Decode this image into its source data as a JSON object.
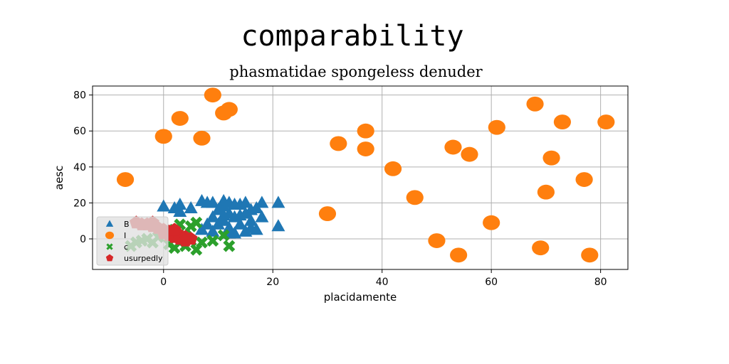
{
  "chart_data": {
    "type": "scatter",
    "title": "comparability",
    "subtitle": "phasmatidae spongeless denuder",
    "xlabel": "placidamente",
    "ylabel": "aesc",
    "xlim": [
      -13,
      85
    ],
    "ylim": [
      -17,
      85
    ],
    "xticks": [
      0,
      20,
      40,
      60,
      80
    ],
    "yticks": [
      0,
      20,
      40,
      60,
      80
    ],
    "grid": true,
    "legend_position": "lower-left",
    "series": [
      {
        "name": "B",
        "marker": "triangle",
        "color": "#1f77b4",
        "points": [
          [
            0,
            18
          ],
          [
            2,
            17
          ],
          [
            3,
            15
          ],
          [
            3,
            19
          ],
          [
            5,
            17
          ],
          [
            7,
            21
          ],
          [
            8,
            20
          ],
          [
            9,
            20
          ],
          [
            10,
            16
          ],
          [
            11,
            18
          ],
          [
            11,
            21
          ],
          [
            12,
            20
          ],
          [
            13,
            19
          ],
          [
            14,
            19
          ],
          [
            15,
            20
          ],
          [
            16,
            16
          ],
          [
            17,
            17
          ],
          [
            18,
            20
          ],
          [
            21,
            20
          ],
          [
            7,
            5
          ],
          [
            8,
            8
          ],
          [
            9,
            4
          ],
          [
            10,
            8
          ],
          [
            11,
            10
          ],
          [
            12,
            6
          ],
          [
            12,
            14
          ],
          [
            13,
            12
          ],
          [
            13,
            3
          ],
          [
            14,
            8
          ],
          [
            15,
            14
          ],
          [
            15,
            4
          ],
          [
            16,
            10
          ],
          [
            16,
            6
          ],
          [
            17,
            5
          ],
          [
            18,
            12
          ],
          [
            21,
            7
          ],
          [
            11,
            13
          ],
          [
            9,
            12
          ],
          [
            14,
            13
          ],
          [
            12,
            3
          ]
        ]
      },
      {
        "name": "I",
        "marker": "circle",
        "color": "#ff7f0e",
        "points": [
          [
            -7,
            33
          ],
          [
            0,
            57
          ],
          [
            3,
            67
          ],
          [
            7,
            56
          ],
          [
            9,
            80
          ],
          [
            11,
            70
          ],
          [
            12,
            72
          ],
          [
            30,
            14
          ],
          [
            32,
            53
          ],
          [
            37,
            60
          ],
          [
            37,
            50
          ],
          [
            42,
            39
          ],
          [
            46,
            23
          ],
          [
            50,
            -1
          ],
          [
            53,
            51
          ],
          [
            54,
            -9
          ],
          [
            56,
            47
          ],
          [
            60,
            9
          ],
          [
            61,
            62
          ],
          [
            68,
            75
          ],
          [
            69,
            -5
          ],
          [
            70,
            26
          ],
          [
            71,
            45
          ],
          [
            73,
            65
          ],
          [
            77,
            33
          ],
          [
            78,
            -9
          ],
          [
            81,
            65
          ]
        ]
      },
      {
        "name": "c",
        "marker": "x",
        "color": "#2ca02c",
        "points": [
          [
            -6,
            -4
          ],
          [
            -5,
            -2
          ],
          [
            -4,
            -1
          ],
          [
            -3,
            0
          ],
          [
            -2,
            -2
          ],
          [
            -1,
            1
          ],
          [
            0,
            3
          ],
          [
            1,
            -3
          ],
          [
            2,
            5
          ],
          [
            2,
            -5
          ],
          [
            3,
            8
          ],
          [
            3,
            -2
          ],
          [
            4,
            2
          ],
          [
            4,
            -4
          ],
          [
            5,
            7
          ],
          [
            5,
            -1
          ],
          [
            6,
            9
          ],
          [
            6,
            -6
          ],
          [
            7,
            -2
          ],
          [
            9,
            -1
          ],
          [
            11,
            2
          ],
          [
            12,
            -4
          ]
        ]
      },
      {
        "name": "usurpedly",
        "marker": "pentagon",
        "color": "#d62728",
        "points": [
          [
            -5,
            9
          ],
          [
            -4,
            8
          ],
          [
            -3,
            8
          ],
          [
            -2,
            7
          ],
          [
            -1,
            6
          ],
          [
            0,
            5
          ],
          [
            0,
            3
          ],
          [
            1,
            4
          ],
          [
            1,
            2
          ],
          [
            2,
            3
          ],
          [
            2,
            1
          ],
          [
            3,
            2
          ],
          [
            3,
            0
          ],
          [
            4,
            1
          ],
          [
            4,
            -1
          ],
          [
            5,
            0
          ],
          [
            2,
            5
          ],
          [
            -2,
            9
          ]
        ]
      }
    ]
  }
}
